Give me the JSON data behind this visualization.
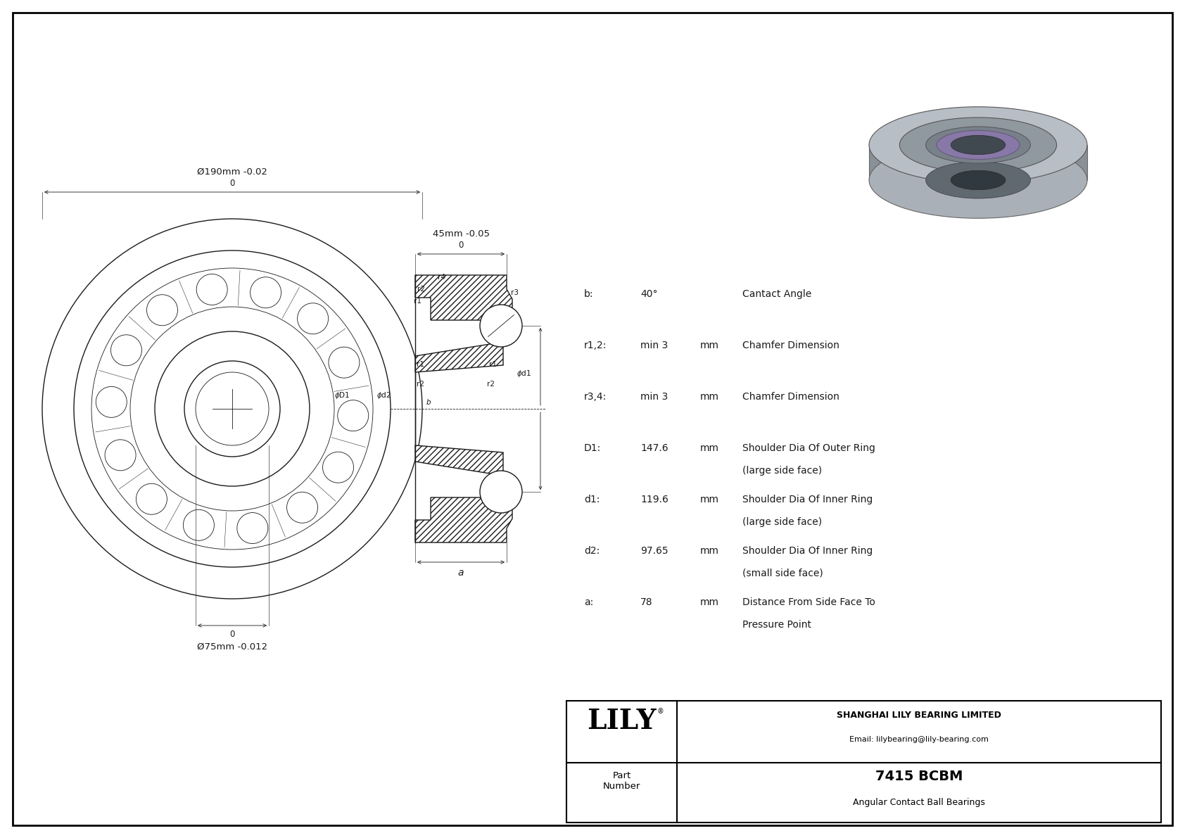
{
  "drawing_color": "#1a1a1a",
  "title": "7415 BCBM",
  "subtitle": "Angular Contact Ball Bearings",
  "company": "SHANGHAI LILY BEARING LIMITED",
  "email": "Email: lilybearing@lily-bearing.com",
  "logo_text": "LILY",
  "part_label": "Part\nNumber",
  "outer_dim_label": "Ø190mm -0.02",
  "outer_dim_top": "0",
  "inner_dim_label": "Ø75mm -0.012",
  "inner_dim_top": "0",
  "width_dim_label": "45mm -0.05",
  "width_dim_top": "0",
  "params": [
    {
      "sym": "b:",
      "val": "40°",
      "unit": "",
      "desc": "Cantact Angle"
    },
    {
      "sym": "r1,2:",
      "val": "min 3",
      "unit": "mm",
      "desc": "Chamfer Dimension"
    },
    {
      "sym": "r3,4:",
      "val": "min 3",
      "unit": "mm",
      "desc": "Chamfer Dimension"
    },
    {
      "sym": "D1:",
      "val": "147.6",
      "unit": "mm",
      "desc": "Shoulder Dia Of Outer Ring\n(large side face)"
    },
    {
      "sym": "d1:",
      "val": "119.6",
      "unit": "mm",
      "desc": "Shoulder Dia Of Inner Ring\n(large side face)"
    },
    {
      "sym": "d2:",
      "val": "97.65",
      "unit": "mm",
      "desc": "Shoulder Dia Of Inner Ring\n(small side face)"
    },
    {
      "sym": "a:",
      "val": "78",
      "unit": "mm",
      "desc": "Distance From Side Face To\nPressure Point"
    }
  ]
}
